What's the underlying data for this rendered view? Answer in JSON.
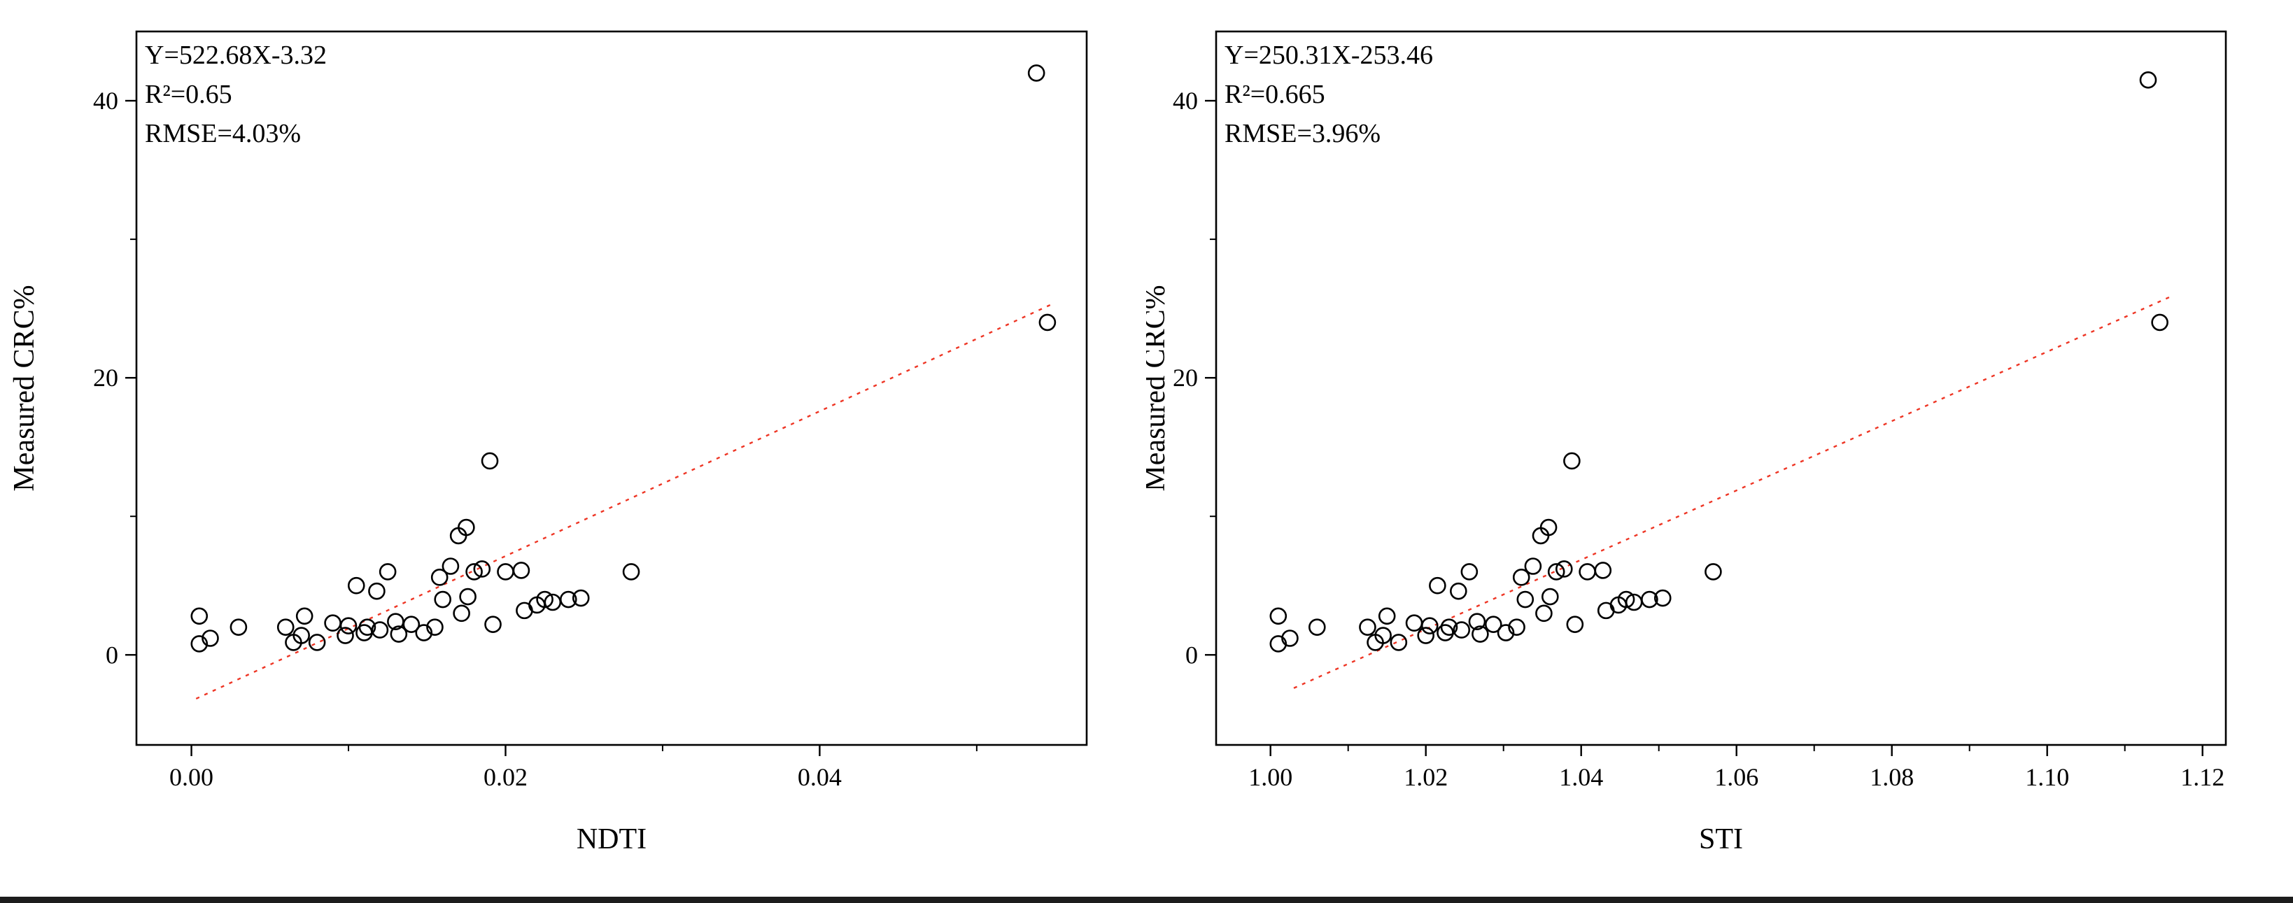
{
  "page": {
    "background": "#ffffff",
    "point_color": "#000000",
    "fit_line_color": "#ee3524",
    "axis_color": "#000000"
  },
  "chart_data": [
    {
      "type": "scatter",
      "title": "",
      "xlabel": "NDTI",
      "ylabel": "Measured CRC%",
      "annotations": [
        "Y=522.68X-3.32",
        "R²=0.65",
        "RMSE=4.03%"
      ],
      "xlim": [
        -0.0035,
        0.057
      ],
      "ylim": [
        -6.5,
        45
      ],
      "xticks": [
        {
          "v": 0.0,
          "label": "0.00"
        },
        {
          "v": 0.02,
          "label": "0.02"
        },
        {
          "v": 0.04,
          "label": "0.04"
        }
      ],
      "xminor": [
        0.01,
        0.03,
        0.05
      ],
      "yticks": [
        {
          "v": 0,
          "label": "0"
        },
        {
          "v": 20,
          "label": "20"
        },
        {
          "v": 40,
          "label": "40"
        }
      ],
      "yminor": [
        10,
        30
      ],
      "grid": false,
      "legend": "none",
      "fit": {
        "slope": 522.68,
        "intercept": -3.32,
        "x_start": 0.0003,
        "x_end": 0.0549,
        "style": "dashed-red"
      },
      "points": [
        [
          0.0005,
          0.8
        ],
        [
          0.0005,
          2.8
        ],
        [
          0.0012,
          1.2
        ],
        [
          0.003,
          2.0
        ],
        [
          0.006,
          2.0
        ],
        [
          0.0065,
          0.9
        ],
        [
          0.007,
          1.4
        ],
        [
          0.0072,
          2.8
        ],
        [
          0.008,
          0.9
        ],
        [
          0.009,
          2.3
        ],
        [
          0.0098,
          1.4
        ],
        [
          0.01,
          2.1
        ],
        [
          0.0105,
          5.0
        ],
        [
          0.011,
          1.6
        ],
        [
          0.0112,
          2.0
        ],
        [
          0.0118,
          4.6
        ],
        [
          0.012,
          1.8
        ],
        [
          0.0125,
          6.0
        ],
        [
          0.013,
          2.4
        ],
        [
          0.0132,
          1.5
        ],
        [
          0.014,
          2.2
        ],
        [
          0.0148,
          1.6
        ],
        [
          0.0155,
          2.0
        ],
        [
          0.0158,
          5.6
        ],
        [
          0.016,
          4.0
        ],
        [
          0.0165,
          6.4
        ],
        [
          0.017,
          8.6
        ],
        [
          0.0172,
          3.0
        ],
        [
          0.0175,
          9.2
        ],
        [
          0.0176,
          4.2
        ],
        [
          0.018,
          6.0
        ],
        [
          0.0185,
          6.2
        ],
        [
          0.019,
          14.0
        ],
        [
          0.0192,
          2.2
        ],
        [
          0.02,
          6.0
        ],
        [
          0.021,
          6.1
        ],
        [
          0.0212,
          3.2
        ],
        [
          0.022,
          3.6
        ],
        [
          0.0225,
          4.0
        ],
        [
          0.023,
          3.8
        ],
        [
          0.024,
          4.0
        ],
        [
          0.0248,
          4.1
        ],
        [
          0.028,
          6.0
        ],
        [
          0.0538,
          42.0
        ],
        [
          0.0545,
          24.0
        ]
      ],
      "layout": {
        "margin_left": 195,
        "margin_right": 85,
        "margin_top": 45,
        "margin_bottom": 193,
        "ylabel_x": 48
      }
    },
    {
      "type": "scatter",
      "title": "",
      "xlabel": "STI",
      "ylabel": "Measured CRC%",
      "annotations": [
        "Y=250.31X-253.46",
        "R²=0.665",
        "RMSE=3.96%"
      ],
      "xlim": [
        0.993,
        1.123
      ],
      "ylim": [
        -6.5,
        45
      ],
      "xticks": [
        {
          "v": 1.0,
          "label": "1.00"
        },
        {
          "v": 1.02,
          "label": "1.02"
        },
        {
          "v": 1.04,
          "label": "1.04"
        },
        {
          "v": 1.06,
          "label": "1.06"
        },
        {
          "v": 1.08,
          "label": "1.08"
        },
        {
          "v": 1.1,
          "label": "1.10"
        },
        {
          "v": 1.12,
          "label": "1.12"
        }
      ],
      "xminor": [
        1.01,
        1.03,
        1.05,
        1.07,
        1.09,
        1.11
      ],
      "yticks": [
        {
          "v": 0,
          "label": "0"
        },
        {
          "v": 20,
          "label": "20"
        },
        {
          "v": 40,
          "label": "40"
        }
      ],
      "yminor": [
        10,
        30
      ],
      "grid": false,
      "legend": "none",
      "fit": {
        "slope": 250.31,
        "intercept": -253.46,
        "x_start": 1.003,
        "x_end": 1.116,
        "style": "dashed-red"
      },
      "points": [
        [
          1.001,
          0.8
        ],
        [
          1.001,
          2.8
        ],
        [
          1.0025,
          1.2
        ],
        [
          1.006,
          2.0
        ],
        [
          1.0125,
          2.0
        ],
        [
          1.0135,
          0.9
        ],
        [
          1.0145,
          1.4
        ],
        [
          1.015,
          2.8
        ],
        [
          1.0165,
          0.9
        ],
        [
          1.0185,
          2.3
        ],
        [
          1.02,
          1.4
        ],
        [
          1.0205,
          2.1
        ],
        [
          1.0215,
          5.0
        ],
        [
          1.0225,
          1.6
        ],
        [
          1.023,
          2.0
        ],
        [
          1.0242,
          4.6
        ],
        [
          1.0246,
          1.8
        ],
        [
          1.0256,
          6.0
        ],
        [
          1.0266,
          2.4
        ],
        [
          1.027,
          1.5
        ],
        [
          1.0287,
          2.2
        ],
        [
          1.0303,
          1.6
        ],
        [
          1.0317,
          2.0
        ],
        [
          1.0323,
          5.6
        ],
        [
          1.0328,
          4.0
        ],
        [
          1.0338,
          6.4
        ],
        [
          1.0348,
          8.6
        ],
        [
          1.0352,
          3.0
        ],
        [
          1.0358,
          9.2
        ],
        [
          1.036,
          4.2
        ],
        [
          1.0368,
          6.0
        ],
        [
          1.0378,
          6.2
        ],
        [
          1.0388,
          14.0
        ],
        [
          1.0392,
          2.2
        ],
        [
          1.0408,
          6.0
        ],
        [
          1.0428,
          6.1
        ],
        [
          1.0432,
          3.2
        ],
        [
          1.0448,
          3.6
        ],
        [
          1.0458,
          4.0
        ],
        [
          1.0468,
          3.8
        ],
        [
          1.0488,
          4.0
        ],
        [
          1.0505,
          4.1
        ],
        [
          1.057,
          6.0
        ],
        [
          1.113,
          41.5
        ],
        [
          1.1145,
          24.0
        ]
      ],
      "layout": {
        "margin_left": 100,
        "margin_right": 95,
        "margin_top": 45,
        "margin_bottom": 193,
        "ylabel_x": 26
      }
    }
  ]
}
